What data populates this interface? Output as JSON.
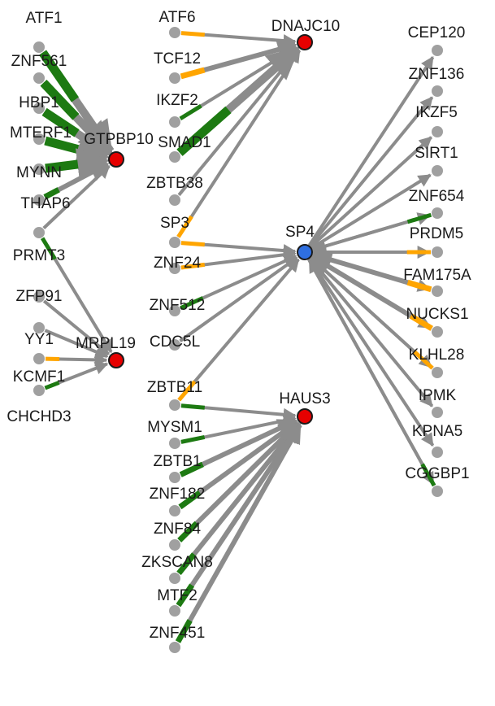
{
  "colors": {
    "edge": "#8c8c8c",
    "node_default": "#a0a0a0",
    "node_target": "#e60000",
    "node_hub": "#2f6fe0",
    "node_stroke": "#1a1a1a",
    "accent_green": "#1d7a12",
    "accent_orange": "#ffa500"
  },
  "nodes": [
    {
      "id": "ATF1",
      "label": "ATF1",
      "kind": "source"
    },
    {
      "id": "ZNF561",
      "label": "ZNF561",
      "kind": "source"
    },
    {
      "id": "HBP1",
      "label": "HBP1",
      "kind": "source"
    },
    {
      "id": "MTERF1",
      "label": "MTERF1",
      "kind": "source"
    },
    {
      "id": "MYNN",
      "label": "MYNN",
      "kind": "source"
    },
    {
      "id": "THAP6",
      "label": "THAP6",
      "kind": "source"
    },
    {
      "id": "PRMT3",
      "label": "PRMT3",
      "kind": "source"
    },
    {
      "id": "ZFP91",
      "label": "ZFP91",
      "kind": "source"
    },
    {
      "id": "YY1",
      "label": "YY1",
      "kind": "source"
    },
    {
      "id": "KCMF1",
      "label": "KCMF1",
      "kind": "source"
    },
    {
      "id": "CHCHD3",
      "label": "CHCHD3",
      "kind": "source"
    },
    {
      "id": "GTPBP10",
      "label": "GTPBP10",
      "kind": "target"
    },
    {
      "id": "MRPL19",
      "label": "MRPL19",
      "kind": "target"
    },
    {
      "id": "ATF6",
      "label": "ATF6",
      "kind": "source"
    },
    {
      "id": "TCF12",
      "label": "TCF12",
      "kind": "source"
    },
    {
      "id": "IKZF2",
      "label": "IKZF2",
      "kind": "source"
    },
    {
      "id": "SMAD1",
      "label": "SMAD1",
      "kind": "source"
    },
    {
      "id": "ZBTB38",
      "label": "ZBTB38",
      "kind": "source"
    },
    {
      "id": "SP3",
      "label": "SP3",
      "kind": "source"
    },
    {
      "id": "ZNF24",
      "label": "ZNF24",
      "kind": "source"
    },
    {
      "id": "ZNF512",
      "label": "ZNF512",
      "kind": "source"
    },
    {
      "id": "CDC5L",
      "label": "CDC5L",
      "kind": "source"
    },
    {
      "id": "ZBTB11",
      "label": "ZBTB11",
      "kind": "source"
    },
    {
      "id": "MYSM1",
      "label": "MYSM1",
      "kind": "source"
    },
    {
      "id": "ZBTB1",
      "label": "ZBTB1",
      "kind": "source"
    },
    {
      "id": "ZNF182",
      "label": "ZNF182",
      "kind": "source"
    },
    {
      "id": "ZNF84",
      "label": "ZNF84",
      "kind": "source"
    },
    {
      "id": "ZKSCAN8",
      "label": "ZKSCAN8",
      "kind": "source"
    },
    {
      "id": "MTF2",
      "label": "MTF2",
      "kind": "source"
    },
    {
      "id": "ZNF451",
      "label": "ZNF451",
      "kind": "source"
    },
    {
      "id": "DNAJC10",
      "label": "DNAJC10",
      "kind": "target"
    },
    {
      "id": "SP4",
      "label": "SP4",
      "kind": "hub"
    },
    {
      "id": "HAUS3",
      "label": "HAUS3",
      "kind": "target"
    },
    {
      "id": "CEP120",
      "label": "CEP120",
      "kind": "source"
    },
    {
      "id": "ZNF136",
      "label": "ZNF136",
      "kind": "source"
    },
    {
      "id": "IKZF5",
      "label": "IKZF5",
      "kind": "source"
    },
    {
      "id": "SIRT1",
      "label": "SIRT1",
      "kind": "source"
    },
    {
      "id": "ZNF654",
      "label": "ZNF654",
      "kind": "source"
    },
    {
      "id": "PRDM5",
      "label": "PRDM5",
      "kind": "source"
    },
    {
      "id": "FAM175A",
      "label": "FAM175A",
      "kind": "source"
    },
    {
      "id": "NUCKS1",
      "label": "NUCKS1",
      "kind": "source"
    },
    {
      "id": "KLHL28",
      "label": "KLHL28",
      "kind": "source"
    },
    {
      "id": "IPMK",
      "label": "IPMK",
      "kind": "source"
    },
    {
      "id": "KPNA5",
      "label": "KPNA5",
      "kind": "source"
    },
    {
      "id": "CGGBP1",
      "label": "CGGBP1",
      "kind": "source"
    }
  ],
  "edges": [
    {
      "from": "ATF1",
      "to": "GTPBP10",
      "accent": "green",
      "strength": "strong"
    },
    {
      "from": "ZNF561",
      "to": "GTPBP10",
      "accent": "green",
      "strength": "strong"
    },
    {
      "from": "HBP1",
      "to": "GTPBP10",
      "accent": "green",
      "strength": "strong"
    },
    {
      "from": "MTERF1",
      "to": "GTPBP10",
      "accent": "green",
      "strength": "strong"
    },
    {
      "from": "MYNN",
      "to": "GTPBP10",
      "accent": "green",
      "strength": "strong"
    },
    {
      "from": "THAP6",
      "to": "GTPBP10",
      "accent": "green",
      "strength": "medium"
    },
    {
      "from": "PRMT3",
      "to": "GTPBP10",
      "accent": "none",
      "strength": "weak"
    },
    {
      "from": "PRMT3",
      "to": "MRPL19",
      "accent": "green",
      "strength": "weak"
    },
    {
      "from": "ZFP91",
      "to": "MRPL19",
      "accent": "none",
      "strength": "weak"
    },
    {
      "from": "YY1",
      "to": "MRPL19",
      "accent": "none",
      "strength": "weak"
    },
    {
      "from": "KCMF1",
      "to": "MRPL19",
      "accent": "orange",
      "strength": "weak"
    },
    {
      "from": "CHCHD3",
      "to": "MRPL19",
      "accent": "green",
      "strength": "weak"
    },
    {
      "from": "ATF6",
      "to": "DNAJC10",
      "accent": "orange",
      "strength": "weak"
    },
    {
      "from": "TCF12",
      "to": "DNAJC10",
      "accent": "orange",
      "strength": "medium"
    },
    {
      "from": "IKZF2",
      "to": "DNAJC10",
      "accent": "green",
      "strength": "weak"
    },
    {
      "from": "SMAD1",
      "to": "DNAJC10",
      "accent": "green",
      "strength": "strong"
    },
    {
      "from": "ZBTB38",
      "to": "DNAJC10",
      "accent": "none",
      "strength": "weak"
    },
    {
      "from": "SP3",
      "to": "DNAJC10",
      "accent": "orange",
      "strength": "weak"
    },
    {
      "from": "SP3",
      "to": "SP4",
      "accent": "orange",
      "strength": "weak"
    },
    {
      "from": "ZNF24",
      "to": "SP4",
      "accent": "orange",
      "strength": "weak"
    },
    {
      "from": "ZNF512",
      "to": "SP4",
      "accent": "green",
      "strength": "weak"
    },
    {
      "from": "CDC5L",
      "to": "SP4",
      "accent": "none",
      "strength": "weak"
    },
    {
      "from": "ZBTB11",
      "to": "SP4",
      "accent": "orange",
      "strength": "weak"
    },
    {
      "from": "ZBTB11",
      "to": "HAUS3",
      "accent": "green",
      "strength": "weak"
    },
    {
      "from": "MYSM1",
      "to": "HAUS3",
      "accent": "green",
      "strength": "weak"
    },
    {
      "from": "ZBTB1",
      "to": "HAUS3",
      "accent": "green",
      "strength": "medium"
    },
    {
      "from": "ZNF182",
      "to": "HAUS3",
      "accent": "green",
      "strength": "medium"
    },
    {
      "from": "ZNF84",
      "to": "HAUS3",
      "accent": "green",
      "strength": "medium"
    },
    {
      "from": "ZKSCAN8",
      "to": "HAUS3",
      "accent": "green",
      "strength": "medium"
    },
    {
      "from": "MTF2",
      "to": "HAUS3",
      "accent": "green",
      "strength": "medium"
    },
    {
      "from": "ZNF451",
      "to": "HAUS3",
      "accent": "green",
      "strength": "medium"
    },
    {
      "from": "SP4",
      "to": "CEP120",
      "accent": "none",
      "strength": "weak"
    },
    {
      "from": "SP4",
      "to": "ZNF136",
      "accent": "none",
      "strength": "weak"
    },
    {
      "from": "SP4",
      "to": "IKZF5",
      "accent": "none",
      "strength": "weak"
    },
    {
      "from": "SP4",
      "to": "SIRT1",
      "accent": "none",
      "strength": "weak"
    },
    {
      "from": "SP4",
      "to": "ZNF654",
      "accent": "none",
      "strength": "weak"
    },
    {
      "from": "SP4",
      "to": "PRDM5",
      "accent": "none",
      "strength": "weak"
    },
    {
      "from": "SP4",
      "to": "FAM175A",
      "accent": "none",
      "strength": "weak"
    },
    {
      "from": "SP4",
      "to": "NUCKS1",
      "accent": "none",
      "strength": "weak"
    },
    {
      "from": "SP4",
      "to": "KLHL28",
      "accent": "none",
      "strength": "weak"
    },
    {
      "from": "SP4",
      "to": "IPMK",
      "accent": "none",
      "strength": "weak"
    },
    {
      "from": "SP4",
      "to": "KPNA5",
      "accent": "none",
      "strength": "weak"
    },
    {
      "from": "SP4",
      "to": "CGGBP1",
      "accent": "none",
      "strength": "weak"
    },
    {
      "from": "ZNF654",
      "to": "SP4",
      "accent": "green",
      "strength": "weak"
    },
    {
      "from": "PRDM5",
      "to": "SP4",
      "accent": "orange",
      "strength": "weak"
    },
    {
      "from": "FAM175A",
      "to": "SP4",
      "accent": "orange",
      "strength": "medium"
    },
    {
      "from": "NUCKS1",
      "to": "SP4",
      "accent": "orange",
      "strength": "medium"
    },
    {
      "from": "KLHL28",
      "to": "SP4",
      "accent": "orange",
      "strength": "weak"
    },
    {
      "from": "CGGBP1",
      "to": "SP4",
      "accent": "green",
      "strength": "weak"
    }
  ]
}
